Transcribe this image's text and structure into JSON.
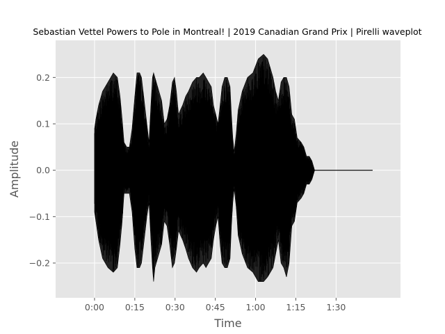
{
  "chart_data": {
    "type": "line",
    "title": "Sebastian Vettel Powers to Pole in Montreal! | 2019 Canadian Grand Prix | Pirelli waveplot",
    "xlabel": "Time",
    "ylabel": "Amplitude",
    "x_unit": "seconds",
    "xlim": [
      -14.5,
      114
    ],
    "ylim": [
      -0.275,
      0.28
    ],
    "x_ticks": [
      {
        "value": 0,
        "label": "0:00"
      },
      {
        "value": 15,
        "label": "0:15"
      },
      {
        "value": 30,
        "label": "0:30"
      },
      {
        "value": 45,
        "label": "0:45"
      },
      {
        "value": 60,
        "label": "1:00"
      },
      {
        "value": 75,
        "label": "1:15"
      },
      {
        "value": 90,
        "label": "1:30"
      }
    ],
    "y_ticks": [
      {
        "value": 0.2,
        "label": "0.2"
      },
      {
        "value": 0.1,
        "label": "0.1"
      },
      {
        "value": 0.0,
        "label": "0.0"
      },
      {
        "value": -0.1,
        "label": "−0.1"
      },
      {
        "value": -0.2,
        "label": "−0.2"
      }
    ],
    "grid": true,
    "style": "ggplot",
    "series": [
      {
        "color": "#000000",
        "envelope": {
          "t": [
            0,
            0.5,
            1.5,
            3,
            5,
            7,
            8.5,
            9.5,
            10.3,
            11,
            12,
            13,
            14,
            15,
            15.8,
            16.8,
            17.5,
            18.5,
            19.5,
            20.3,
            21,
            21.6,
            22,
            22.5,
            23.5,
            25,
            26,
            27,
            28,
            29,
            29.8,
            30.5,
            31.3,
            32,
            32.8,
            34,
            35,
            36.5,
            38,
            39,
            40.5,
            41.5,
            42.5,
            43.5,
            44.3,
            45.2,
            46,
            46.8,
            47.5,
            48.5,
            49.5,
            50.5,
            51,
            51.5,
            52,
            52.8,
            53.5,
            55,
            57,
            59,
            61,
            63,
            64.5,
            65.5,
            66.5,
            67.5,
            68.5,
            69.5,
            70.5,
            71.5,
            72.5,
            73.5,
            74.5,
            75.5,
            77,
            78,
            79,
            80,
            81,
            82,
            83,
            84,
            85,
            86,
            87,
            88,
            89,
            90,
            91,
            92.5,
            94.5,
            96,
            97.5,
            99,
            100.5,
            102,
            103.6
          ],
          "upper": [
            0.09,
            0.11,
            0.14,
            0.17,
            0.19,
            0.21,
            0.2,
            0.16,
            0.11,
            0.06,
            0.05,
            0.05,
            0.09,
            0.16,
            0.21,
            0.21,
            0.2,
            0.15,
            0.1,
            0.06,
            0.14,
            0.2,
            0.21,
            0.2,
            0.18,
            0.15,
            0.1,
            0.11,
            0.14,
            0.19,
            0.2,
            0.17,
            0.12,
            0.13,
            0.14,
            0.16,
            0.17,
            0.19,
            0.2,
            0.2,
            0.21,
            0.2,
            0.19,
            0.18,
            0.14,
            0.12,
            0.1,
            0.14,
            0.18,
            0.2,
            0.2,
            0.18,
            0.12,
            0.07,
            0.04,
            0.08,
            0.13,
            0.17,
            0.2,
            0.21,
            0.24,
            0.25,
            0.24,
            0.22,
            0.2,
            0.17,
            0.15,
            0.19,
            0.2,
            0.2,
            0.18,
            0.12,
            0.11,
            0.07,
            0.06,
            0.05,
            0.03,
            0.03,
            0.02,
            0.0,
            0.0,
            0.0,
            0.0,
            0.0,
            0.0,
            0.0,
            0.0,
            0.0,
            0.0,
            0.0,
            0.0,
            0.0,
            0.0,
            0.0,
            0.0,
            0.0,
            0.0
          ],
          "lower": [
            -0.09,
            -0.11,
            -0.15,
            -0.19,
            -0.21,
            -0.22,
            -0.21,
            -0.16,
            -0.11,
            -0.05,
            -0.05,
            -0.05,
            -0.09,
            -0.17,
            -0.21,
            -0.21,
            -0.2,
            -0.15,
            -0.1,
            -0.07,
            -0.15,
            -0.21,
            -0.24,
            -0.21,
            -0.19,
            -0.16,
            -0.11,
            -0.12,
            -0.16,
            -0.21,
            -0.2,
            -0.17,
            -0.13,
            -0.14,
            -0.15,
            -0.17,
            -0.19,
            -0.21,
            -0.22,
            -0.21,
            -0.2,
            -0.21,
            -0.2,
            -0.19,
            -0.15,
            -0.12,
            -0.1,
            -0.16,
            -0.2,
            -0.21,
            -0.21,
            -0.19,
            -0.12,
            -0.07,
            -0.04,
            -0.08,
            -0.14,
            -0.18,
            -0.21,
            -0.22,
            -0.24,
            -0.24,
            -0.23,
            -0.22,
            -0.21,
            -0.18,
            -0.15,
            -0.2,
            -0.21,
            -0.23,
            -0.2,
            -0.12,
            -0.11,
            -0.07,
            -0.06,
            -0.05,
            -0.03,
            -0.03,
            -0.02,
            0.0,
            0.0,
            0.0,
            0.0,
            0.0,
            0.0,
            0.0,
            0.0,
            0.0,
            0.0,
            0.0,
            0.0,
            0.0,
            0.0,
            0.0,
            0.0,
            0.0,
            0.0
          ]
        }
      }
    ]
  }
}
